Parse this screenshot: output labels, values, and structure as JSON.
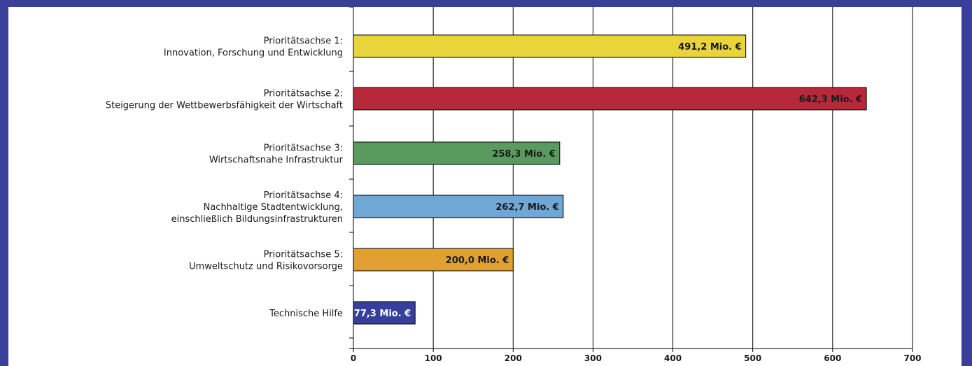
{
  "chart_data": {
    "type": "bar",
    "orientation": "horizontal",
    "categories": [
      [
        "Prioritätsachse 1:",
        "Innovation, Forschung und Entwicklung"
      ],
      [
        "Prioritätsachse 2:",
        "Steigerung der Wettbewerbsfähigkeit der Wirtschaft"
      ],
      [
        "Prioritätsachse 3:",
        "Wirtschaftsnahe Infrastruktur"
      ],
      [
        "Prioritätsachse 4:",
        "Nachhaltige Stadtentwicklung,",
        "einschließlich Bildungsinfrastrukturen"
      ],
      [
        "Prioritätsachse 5:",
        "Umweltschutz und Risikovorsorge"
      ],
      [
        "Technische Hilfe"
      ]
    ],
    "values": [
      491.2,
      642.3,
      258.3,
      262.7,
      200.0,
      77.3
    ],
    "data_labels": [
      "491,2 Mio. €",
      "642,3 Mio. €",
      "258,3 Mio. €",
      "262,7 Mio. €",
      "200,0 Mio. €",
      "77,3 Mio. €"
    ],
    "bar_colors": [
      "#ead43c",
      "#b8283b",
      "#5b9a5e",
      "#6fa7d6",
      "#e0a032",
      "#373f9c"
    ],
    "label_colors": [
      "#1a1a1a",
      "#1a1a1a",
      "#1a1a1a",
      "#1a1a1a",
      "#1a1a1a",
      "#ffffff"
    ],
    "xlim": [
      0,
      700
    ],
    "xticks": [
      0,
      100,
      200,
      300,
      400,
      500,
      600,
      700
    ],
    "grid": true,
    "title": "",
    "xlabel": "",
    "ylabel": ""
  }
}
